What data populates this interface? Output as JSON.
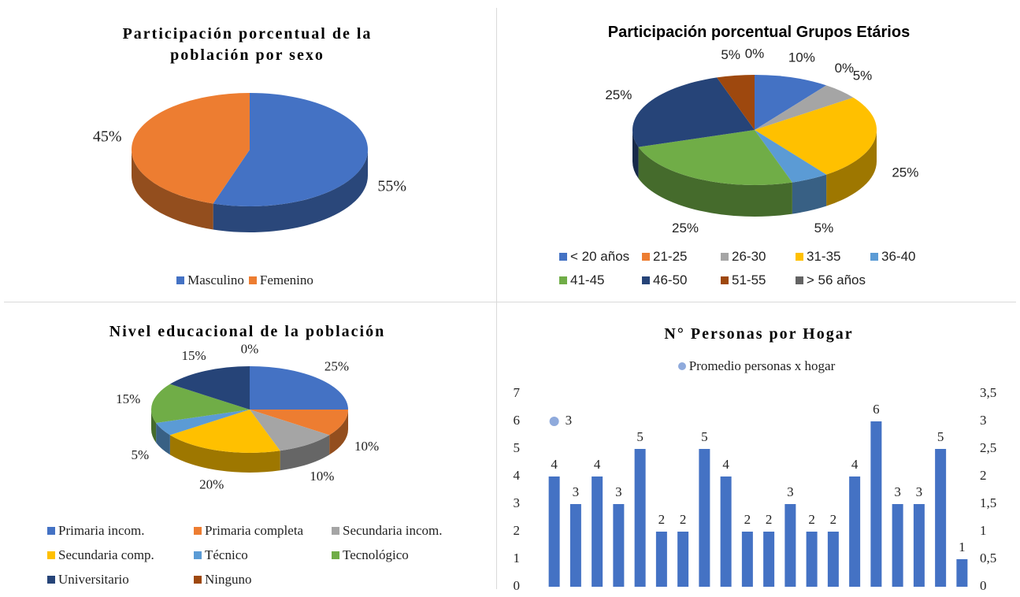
{
  "chart_data": [
    {
      "type": "pie",
      "title": "Participación porcentual de la población por sexo",
      "categories": [
        "Masculino",
        "Femenino"
      ],
      "values": [
        55,
        45
      ],
      "value_labels": [
        "55%",
        "45%"
      ],
      "colors": [
        "#4472c4",
        "#ed7d31"
      ],
      "legend": "bottom"
    },
    {
      "type": "pie",
      "title": "Participación porcentual Grupos Etários",
      "categories": [
        "< 20 años",
        "21-25",
        "26-30",
        "31-35",
        "36-40",
        "41-45",
        "46-50",
        "51-55",
        "> 56 años"
      ],
      "values": [
        10,
        0,
        5,
        25,
        5,
        25,
        25,
        5,
        0
      ],
      "value_labels": [
        "10%",
        "0%",
        "5%",
        "25%",
        "5%",
        "25%",
        "25%",
        "5%",
        "0%"
      ],
      "colors": [
        "#4472c4",
        "#ed7d31",
        "#a5a5a5",
        "#ffc000",
        "#5b9bd5",
        "#70ad47",
        "#264478",
        "#9e480e",
        "#636363"
      ],
      "legend": "bottom"
    },
    {
      "type": "pie",
      "title": "Nivel educacional de la población",
      "categories": [
        "Primaria incom.",
        "Primaria completa",
        "Secundaria incom.",
        "Secundaria comp.",
        "Técnico",
        "Tecnológico",
        "Universitario",
        "Ninguno"
      ],
      "values": [
        25,
        10,
        10,
        20,
        5,
        15,
        15,
        0
      ],
      "value_labels": [
        "25%",
        "10%",
        "10%",
        "20%",
        "5%",
        "15%",
        "15%",
        "0%"
      ],
      "colors": [
        "#4472c4",
        "#ed7d31",
        "#a5a5a5",
        "#ffc000",
        "#5b9bd5",
        "#70ad47",
        "#264478",
        "#9e480e"
      ],
      "legend": "bottom"
    },
    {
      "type": "bar",
      "title": "N° Personas por Hogar",
      "categories": [
        null,
        null,
        null,
        null,
        null,
        null,
        null,
        null,
        null,
        null,
        null,
        null,
        null,
        null,
        null,
        null,
        null,
        null,
        null,
        null
      ],
      "series": [
        {
          "color": "#4472c4",
          "values": [
            4,
            3,
            4,
            3,
            5,
            2,
            2,
            5,
            4,
            2,
            2,
            3,
            2,
            2,
            4,
            6,
            3,
            3,
            5,
            1
          ]
        },
        {
          "name": "Promedio personas x hogar",
          "type": "scatter",
          "axis": "y2",
          "color": "#8faadc",
          "values": [
            3,
            null,
            null,
            null,
            null,
            null,
            null,
            null,
            null,
            null,
            null,
            null,
            null,
            null,
            null,
            null,
            null,
            null,
            null,
            null
          ]
        }
      ],
      "ylim": [
        0,
        7
      ],
      "yticks": [
        0,
        1,
        2,
        3,
        4,
        5,
        6,
        7
      ],
      "y2lim": [
        0,
        3.5
      ],
      "y2ticks": [
        0,
        {
          "value": 0.5,
          "label": "0,5"
        },
        1,
        {
          "value": 1.5,
          "label": "1,5"
        },
        2,
        {
          "value": 2.5,
          "label": "2,5"
        },
        3,
        {
          "value": 3.5,
          "label": "3,5"
        }
      ],
      "legend": "top"
    }
  ]
}
